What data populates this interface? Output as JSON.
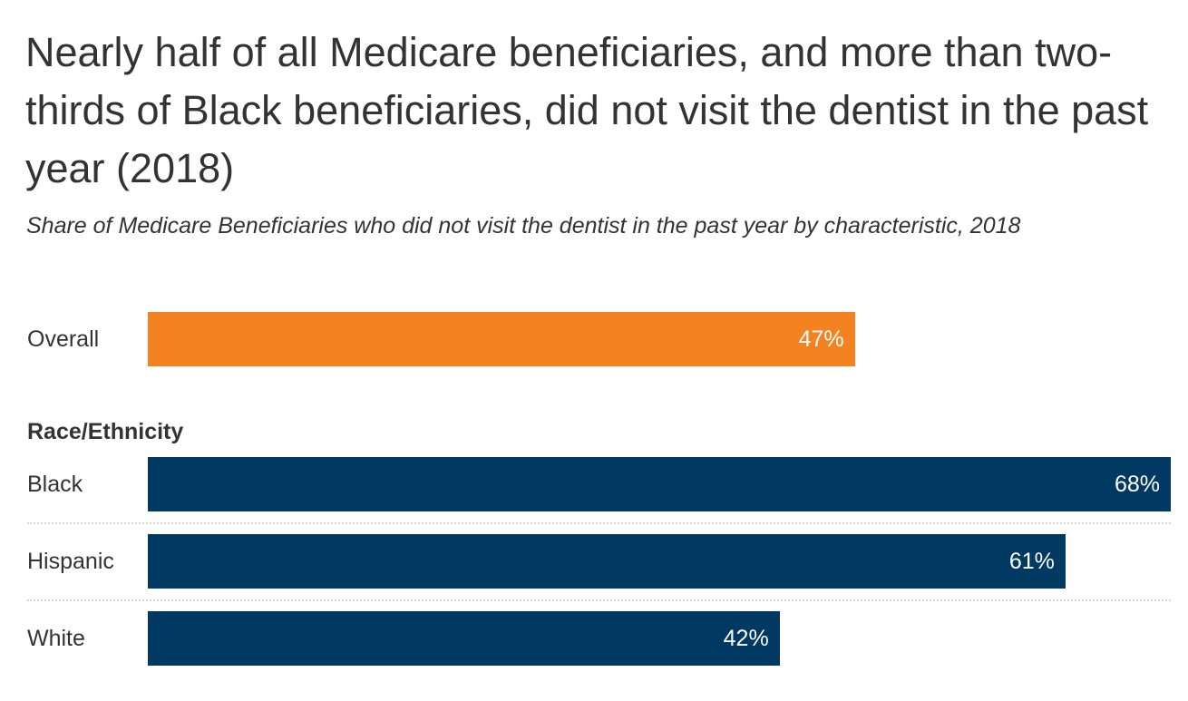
{
  "chart_data": {
    "type": "bar",
    "orientation": "horizontal",
    "title": "Nearly half of all Medicare beneficiaries, and more than two-thirds of Black beneficiaries, did not visit the dentist in the past year (2018)",
    "subtitle": "Share of Medicare Beneficiaries who did not visit the dentist in the past year by characteristic, 2018",
    "xlim": [
      0,
      68
    ],
    "grid": false,
    "overall": {
      "category": "Overall",
      "value": 47,
      "label": "47%",
      "color": "#f58220"
    },
    "group_label": "Race/Ethnicity",
    "categories": [
      "Black",
      "Hispanic",
      "White"
    ],
    "values": [
      68,
      61,
      42
    ],
    "labels": [
      "68%",
      "61%",
      "42%"
    ],
    "color": "#003a63"
  }
}
